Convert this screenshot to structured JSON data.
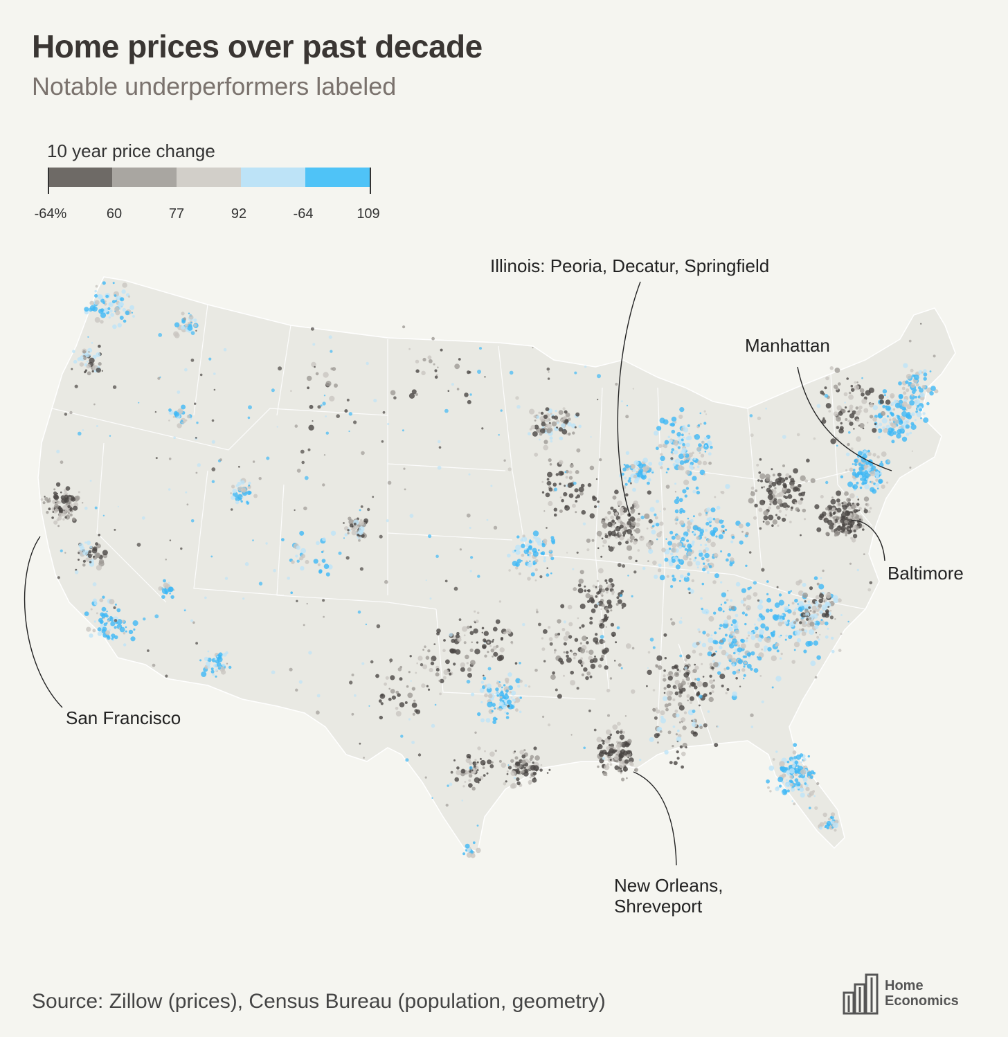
{
  "title": "Home prices over past decade",
  "subtitle": "Notable underperformers labeled",
  "legend": {
    "title": "10 year price change",
    "bins": [
      {
        "color": "#6e6a66"
      },
      {
        "color": "#a9a6a1"
      },
      {
        "color": "#d2cfc9"
      },
      {
        "color": "#bde3f7"
      },
      {
        "color": "#4fc3f7"
      }
    ],
    "tick_labels": [
      "-64%",
      "60",
      "77",
      "92",
      "-64",
      "109"
    ]
  },
  "annotations": {
    "illinois": "Illinois: Peoria, Decatur, Springfield",
    "manhattan": "Manhattan",
    "baltimore": "Baltimore",
    "san_francisco": "San Francisco",
    "new_orleans_line1": "New Orleans,",
    "new_orleans_line2": "Shreveport"
  },
  "source": "Source: Zillow (prices), Census Bureau (population, geometry)",
  "logo": {
    "line1": "Home",
    "line2": "Economics"
  },
  "colors": {
    "background": "#f5f5f0",
    "land": "#e9e9e3",
    "border": "#ffffff",
    "dark": "#4a4643",
    "mid": "#9e9a95",
    "light": "#c9c6c0",
    "pale_blue": "#bde3f7",
    "blue": "#3fb8f5"
  }
}
